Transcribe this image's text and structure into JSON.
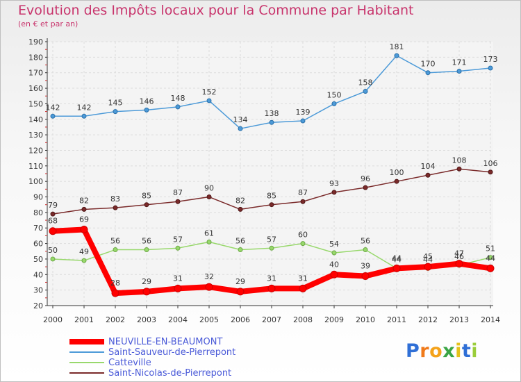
{
  "header": {
    "title": "Evolution des Impôts locaux pour la Commune par Habitant",
    "subtitle": "(en € et par an)"
  },
  "logo": {
    "letters": [
      "P",
      "r",
      "o",
      "x",
      "i",
      "t",
      "i"
    ],
    "colors": [
      "#2f6fd6",
      "#f07a1a",
      "#f4a21a",
      "#3aa545",
      "#e4c21a",
      "#2f6fd6",
      "#9acd3a"
    ]
  },
  "chart_data": {
    "type": "line",
    "title": "Evolution des Impôts locaux pour la Commune par Habitant",
    "subtitle": "(en € et par an)",
    "xlabel": "",
    "ylabel": "",
    "x": [
      "2000",
      "2001",
      "2002",
      "2003",
      "2004",
      "2005",
      "2006",
      "2007",
      "2008",
      "2009",
      "2010",
      "2011",
      "2012",
      "2013",
      "2014"
    ],
    "ylim": [
      20,
      190
    ],
    "yticks": [
      20,
      30,
      40,
      50,
      60,
      70,
      80,
      90,
      100,
      110,
      120,
      130,
      140,
      150,
      160,
      170,
      180,
      190
    ],
    "grid": true,
    "legend_position": "bottom-left",
    "series": [
      {
        "name": "Saint-Sauveur-de-Pierrepont",
        "color": "#4c9ad8",
        "values": [
          142,
          142,
          145,
          146,
          148,
          152,
          134,
          138,
          139,
          150,
          158,
          181,
          170,
          171,
          173
        ]
      },
      {
        "name": "Saint-Nicolas-de-Pierrepont",
        "color": "#7a2a2a",
        "values": [
          79,
          82,
          83,
          85,
          87,
          90,
          82,
          85,
          87,
          93,
          96,
          100,
          104,
          108,
          106
        ]
      },
      {
        "name": "Catteville",
        "color": "#98d86c",
        "values": [
          50,
          49,
          56,
          56,
          57,
          61,
          56,
          57,
          60,
          54,
          56,
          44,
          44,
          46,
          51
        ]
      },
      {
        "name": "NEUVILLE-EN-BEAUMONT",
        "color": "#ff0000",
        "values": [
          68,
          69,
          28,
          29,
          31,
          32,
          29,
          31,
          31,
          40,
          39,
          44,
          45,
          47,
          44
        ]
      }
    ],
    "legend_order": [
      "NEUVILLE-EN-BEAUMONT",
      "Saint-Sauveur-de-Pierrepont",
      "Catteville",
      "Saint-Nicolas-de-Pierrepont"
    ]
  }
}
